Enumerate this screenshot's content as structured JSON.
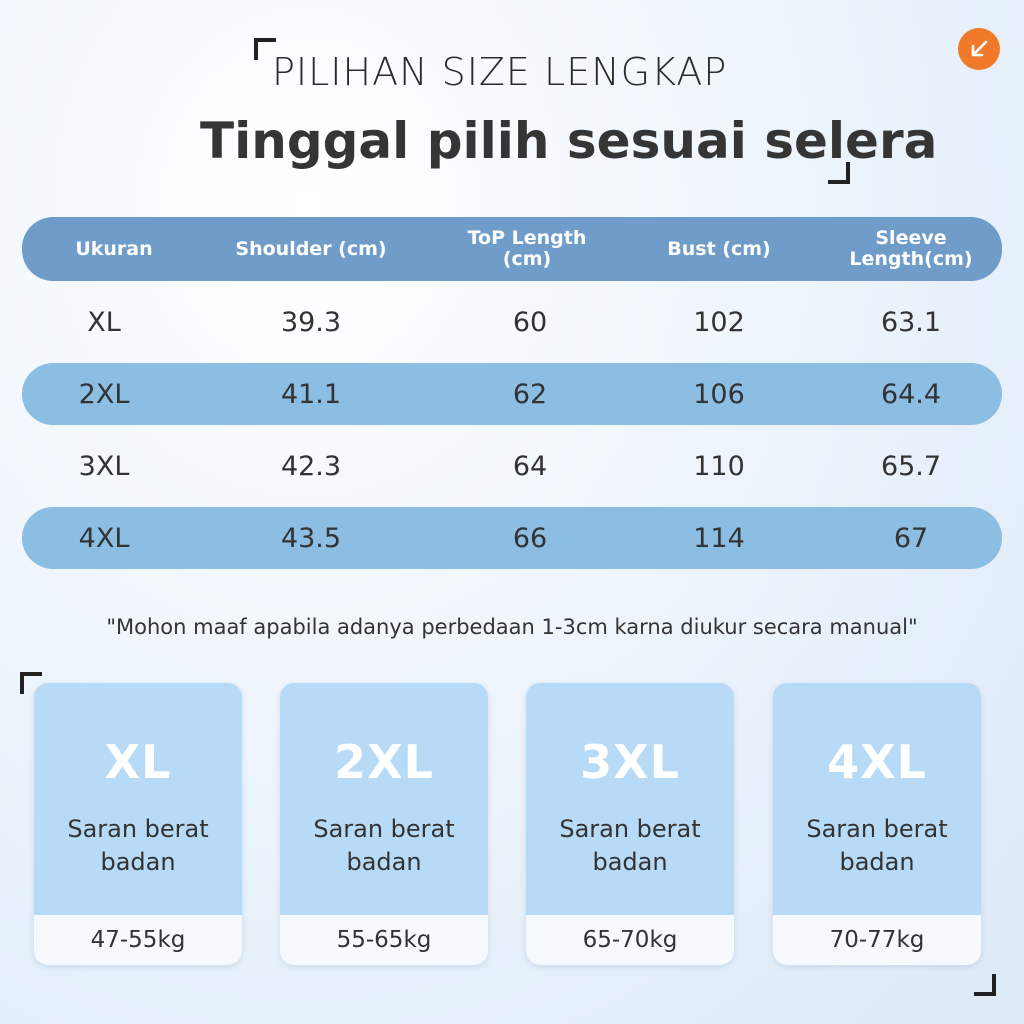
{
  "header": {
    "subtitle": "PILIHAN SIZE LENGKAP",
    "title": "Tinggal pilih sesuai selera",
    "corner_icon": "arrow-down-left-icon",
    "accent": "#f07a2a"
  },
  "table": {
    "columns": [
      "Ukuran",
      "Shoulder (cm)",
      "ToP Length (cm)",
      "Bust (cm)",
      "Sleeve Length(cm)"
    ],
    "rows": [
      [
        "XL",
        "39.3",
        "60",
        "102",
        "63.1"
      ],
      [
        "2XL",
        "41.1",
        "62",
        "106",
        "64.4"
      ],
      [
        "3XL",
        "42.3",
        "64",
        "110",
        "65.7"
      ],
      [
        "4XL",
        "43.5",
        "66",
        "114",
        "67"
      ]
    ],
    "header_color": "#6f9cc9",
    "stripe_color": "#8cbde3"
  },
  "note": "\"Mohon maaf apabila adanya perbedaan 1-3cm karna diukur secara manual\"",
  "cards": [
    {
      "size": "XL",
      "label_line1": "Saran berat",
      "label_line2": "badan",
      "weight": "47-55kg"
    },
    {
      "size": "2XL",
      "label_line1": "Saran berat",
      "label_line2": "badan",
      "weight": "55-65kg"
    },
    {
      "size": "3XL",
      "label_line1": "Saran berat",
      "label_line2": "badan",
      "weight": "65-70kg"
    },
    {
      "size": "4XL",
      "label_line1": "Saran berat",
      "label_line2": "badan",
      "weight": "70-77kg"
    }
  ]
}
